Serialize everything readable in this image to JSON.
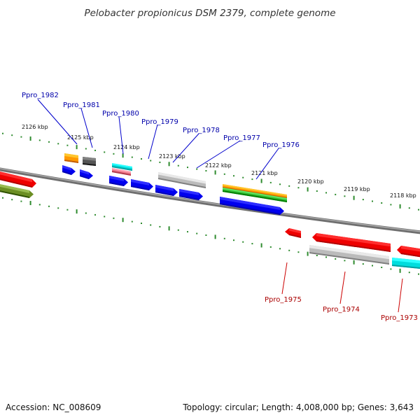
{
  "title": "Pelobacter propionicus DSM 2379, complete genome",
  "footer": {
    "accession": "Accession: NC_008609",
    "topology": "Topology: circular; Length: 4,008,000 bp; Genes: 3,643"
  },
  "kbp_ticks": [
    "2126 kbp",
    "2125 kbp",
    "2124 kbp",
    "2123 kbp",
    "2122 kbp",
    "2121 kbp",
    "2120 kbp",
    "2119 kbp",
    "2118 kbp"
  ],
  "genes_top": [
    "Ppro_1982",
    "Ppro_1981",
    "Ppro_1980",
    "Ppro_1979",
    "Ppro_1978",
    "Ppro_1977",
    "Ppro_1976"
  ],
  "genes_bottom": [
    "Ppro_1975",
    "Ppro_1974",
    "Ppro_1973"
  ],
  "colors": {
    "backbone": "#808080",
    "tick": "#2e8b2e",
    "label_top": "#0000aa",
    "label_bottom": "#aa0000",
    "cds_blue": "#0000ee",
    "cds_red": "#ee0000",
    "orange": "#ff9900",
    "dark_gray": "#555555",
    "light_gray": "#bbbbbb",
    "cyan": "#00dddd",
    "pink": "#ee7788",
    "green": "#33bb33",
    "olive": "#6b8e23"
  }
}
